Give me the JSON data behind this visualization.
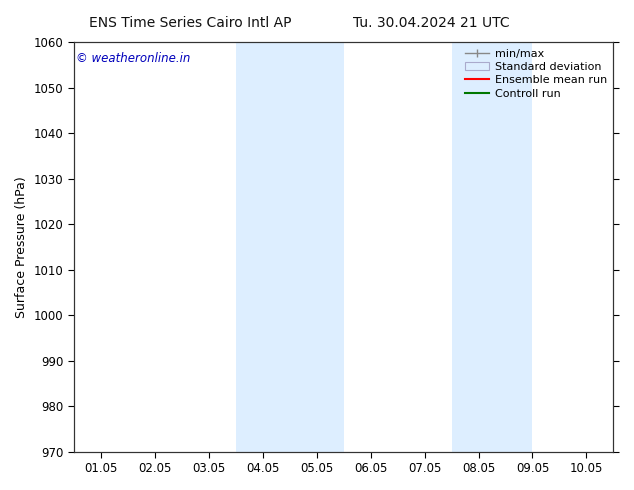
{
  "title_left": "ENS Time Series Cairo Intl AP",
  "title_right": "Tu. 30.04.2024 21 UTC",
  "ylabel": "Surface Pressure (hPa)",
  "ylim": [
    970,
    1060
  ],
  "yticks": [
    970,
    980,
    990,
    1000,
    1010,
    1020,
    1030,
    1040,
    1050,
    1060
  ],
  "xlabels": [
    "01.05",
    "02.05",
    "03.05",
    "04.05",
    "05.05",
    "06.05",
    "07.05",
    "08.05",
    "09.05",
    "10.05"
  ],
  "x_positions": [
    1,
    2,
    3,
    4,
    5,
    6,
    7,
    8,
    9,
    10
  ],
  "xlim": [
    0.5,
    10.5
  ],
  "shaded_bands": [
    {
      "x_start": 3.5,
      "x_end": 5.5
    },
    {
      "x_start": 7.5,
      "x_end": 9.0
    }
  ],
  "shade_color": "#ddeeff",
  "copyright_text": "© weatheronline.in",
  "copyright_color": "#0000bb",
  "legend_labels": [
    "min/max",
    "Standard deviation",
    "Ensemble mean run",
    "Controll run"
  ],
  "legend_line_color": "#888888",
  "legend_std_facecolor": "#ddeeff",
  "legend_std_edgecolor": "#aaaacc",
  "legend_mean_color": "#ff0000",
  "legend_ctrl_color": "#007700",
  "background_color": "#ffffff",
  "title_fontsize": 10,
  "axis_fontsize": 9,
  "tick_fontsize": 8.5,
  "legend_fontsize": 8
}
